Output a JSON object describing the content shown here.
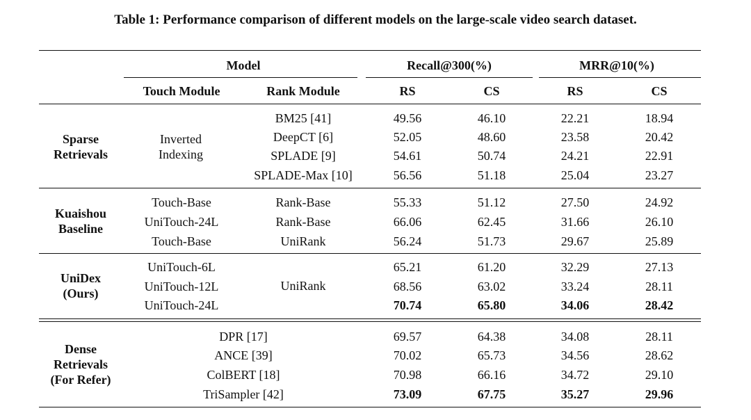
{
  "caption": "Table 1: Performance comparison of different models on the large-scale video search dataset.",
  "header": {
    "model": "Model",
    "recall": "Recall@300(%)",
    "mrr": "MRR@10(%)",
    "touch": "Touch Module",
    "rank": "Rank Module",
    "rs1": "RS",
    "cs1": "CS",
    "rs2": "RS",
    "cs2": "CS"
  },
  "groups": {
    "sparse": [
      "Sparse",
      "Retrievals"
    ],
    "kuaishou": [
      "Kuaishou",
      "Baseline"
    ],
    "unidex": [
      "UniDex",
      "(Ours)"
    ],
    "dense": [
      "Dense",
      "Retrievals",
      "(For Refer)"
    ]
  },
  "inverted_indexing": [
    "Inverted",
    "Indexing"
  ],
  "unirank_merged": "UniRank",
  "rows": [
    {
      "touch": "",
      "rank": "BM25 [41]",
      "v": [
        "49.56",
        "46.10",
        "22.21",
        "18.94"
      ]
    },
    {
      "touch": "",
      "rank": "DeepCT [6]",
      "v": [
        "52.05",
        "48.60",
        "23.58",
        "20.42"
      ]
    },
    {
      "touch": "",
      "rank": "SPLADE [9]",
      "v": [
        "54.61",
        "50.74",
        "24.21",
        "22.91"
      ]
    },
    {
      "touch": "",
      "rank": "SPLADE-Max [10]",
      "v": [
        "56.56",
        "51.18",
        "25.04",
        "23.27"
      ]
    },
    {
      "touch": "Touch-Base",
      "rank": "Rank-Base",
      "v": [
        "55.33",
        "51.12",
        "27.50",
        "24.92"
      ]
    },
    {
      "touch": "UniTouch-24L",
      "rank": "Rank-Base",
      "v": [
        "66.06",
        "62.45",
        "31.66",
        "26.10"
      ]
    },
    {
      "touch": "Touch-Base",
      "rank": "UniRank",
      "v": [
        "56.24",
        "51.73",
        "29.67",
        "25.89"
      ]
    },
    {
      "touch": "UniTouch-6L",
      "rank": "",
      "v": [
        "65.21",
        "61.20",
        "32.29",
        "27.13"
      ]
    },
    {
      "touch": "UniTouch-12L",
      "rank": "",
      "v": [
        "68.56",
        "63.02",
        "33.24",
        "28.11"
      ]
    },
    {
      "touch": "UniTouch-24L",
      "rank": "",
      "v": [
        "70.74",
        "65.80",
        "34.06",
        "28.42"
      ]
    },
    {
      "touch": "DPR [17]",
      "rank": "",
      "v": [
        "69.57",
        "64.38",
        "34.08",
        "28.11"
      ]
    },
    {
      "touch": "ANCE [39]",
      "rank": "",
      "v": [
        "70.02",
        "65.73",
        "34.56",
        "28.62"
      ]
    },
    {
      "touch": "ColBERT [18]",
      "rank": "",
      "v": [
        "70.98",
        "66.16",
        "34.72",
        "29.10"
      ]
    },
    {
      "touch": "TriSampler [42]",
      "rank": "",
      "v": [
        "73.09",
        "67.75",
        "35.27",
        "29.96"
      ]
    }
  ],
  "bold_rows": [
    9,
    13
  ]
}
